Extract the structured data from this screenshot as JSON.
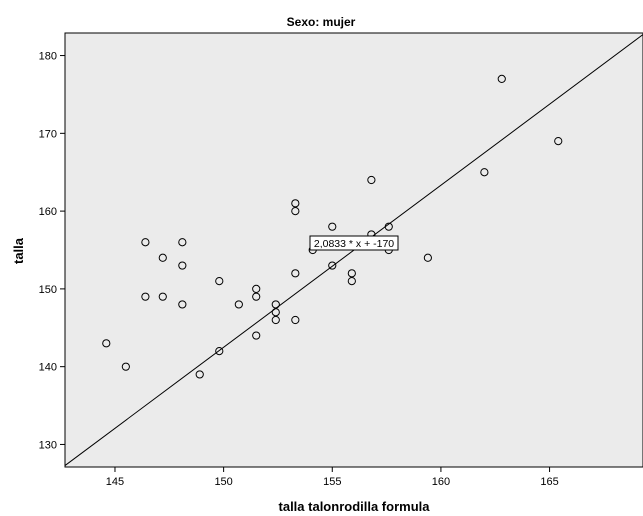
{
  "chart_data": {
    "type": "scatter",
    "title": "Sexo: mujer",
    "xlabel": "talla talonrodilla formula",
    "ylabel": "talla",
    "xlim": [
      142.7,
      169.3
    ],
    "ylim": [
      127.1,
      182.9
    ],
    "x_ticks": [
      145,
      150,
      155,
      160,
      165
    ],
    "y_ticks": [
      130,
      140,
      150,
      160,
      170,
      180
    ],
    "x_tick_labels": [
      "145",
      "150",
      "155",
      "160",
      "165"
    ],
    "y_tick_labels": [
      "130",
      "140",
      "150",
      "160",
      "170",
      "180"
    ],
    "grid": false,
    "plot_background": "#ebebeb",
    "marker": "hollow-circle",
    "points": [
      {
        "x": 144.6,
        "y": 143
      },
      {
        "x": 145.5,
        "y": 140
      },
      {
        "x": 146.4,
        "y": 156
      },
      {
        "x": 146.4,
        "y": 149
      },
      {
        "x": 147.2,
        "y": 154
      },
      {
        "x": 147.2,
        "y": 149
      },
      {
        "x": 148.1,
        "y": 156
      },
      {
        "x": 148.1,
        "y": 153
      },
      {
        "x": 148.1,
        "y": 148
      },
      {
        "x": 148.9,
        "y": 139
      },
      {
        "x": 149.8,
        "y": 151
      },
      {
        "x": 149.8,
        "y": 142
      },
      {
        "x": 150.7,
        "y": 148
      },
      {
        "x": 151.5,
        "y": 150
      },
      {
        "x": 151.5,
        "y": 149
      },
      {
        "x": 151.5,
        "y": 144
      },
      {
        "x": 152.4,
        "y": 148
      },
      {
        "x": 152.4,
        "y": 147
      },
      {
        "x": 152.4,
        "y": 146
      },
      {
        "x": 153.3,
        "y": 161
      },
      {
        "x": 153.3,
        "y": 160
      },
      {
        "x": 153.3,
        "y": 152
      },
      {
        "x": 153.3,
        "y": 146
      },
      {
        "x": 154.1,
        "y": 155
      },
      {
        "x": 155.0,
        "y": 158
      },
      {
        "x": 155.0,
        "y": 153
      },
      {
        "x": 155.9,
        "y": 152
      },
      {
        "x": 155.9,
        "y": 151
      },
      {
        "x": 156.8,
        "y": 164
      },
      {
        "x": 156.8,
        "y": 157
      },
      {
        "x": 157.6,
        "y": 158
      },
      {
        "x": 157.6,
        "y": 155
      },
      {
        "x": 159.4,
        "y": 154
      },
      {
        "x": 162.0,
        "y": 165
      },
      {
        "x": 162.8,
        "y": 177
      },
      {
        "x": 165.4,
        "y": 169
      }
    ],
    "fit_line": {
      "slope": 2.0833,
      "intercept": -170
    },
    "annotation": {
      "text": "2,0833 * x + -170",
      "x": 156.0,
      "y": 155.9
    }
  }
}
